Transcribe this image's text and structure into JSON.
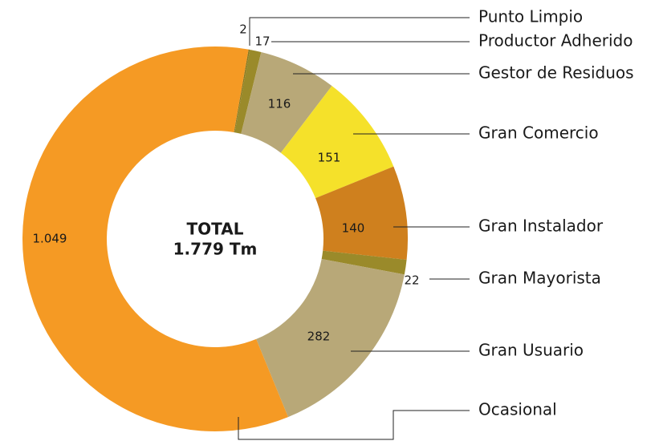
{
  "chart_data": {
    "type": "donut",
    "center_label": [
      "TOTAL",
      "1.779 Tm"
    ],
    "categories": [
      "Punto Limpio",
      "Productor Adherido",
      "Gestor de Residuos",
      "Gran Comercio",
      "Gran Instalador",
      "Gran Mayorista",
      "Gran Usuario",
      "Ocasional"
    ],
    "values": [
      2,
      17,
      116,
      151,
      140,
      22,
      282,
      1049
    ],
    "value_labels": [
      "2",
      "17",
      "116",
      "151",
      "140",
      "22",
      "282",
      "1.049"
    ],
    "colors": [
      "#8a7a20",
      "#9a8a2a",
      "#b8a878",
      "#f5e12a",
      "#cf801e",
      "#9a8a2a",
      "#b8a878",
      "#f59a24"
    ]
  }
}
